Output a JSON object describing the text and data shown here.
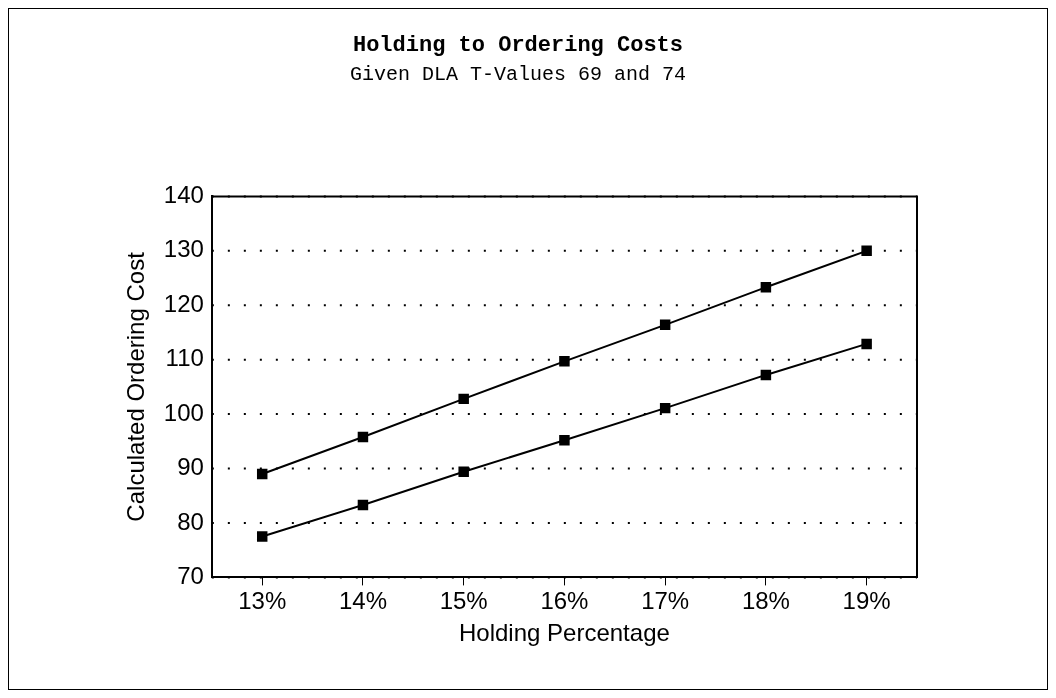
{
  "chart_data": {
    "type": "line",
    "title": "Holding to Ordering Costs",
    "subtitle": "Given DLA T-Values 69 and 74",
    "xlabel": "Holding Percentage",
    "ylabel": "Calculated Ordering Cost",
    "categories": [
      "13%",
      "14%",
      "15%",
      "16%",
      "17%",
      "18%",
      "19%"
    ],
    "series": [
      {
        "color": "#000000",
        "values": [
          89.0,
          95.8,
          102.8,
          109.7,
          116.4,
          123.3,
          130.0
        ]
      },
      {
        "color": "#000000",
        "values": [
          77.5,
          83.3,
          89.4,
          95.2,
          101.1,
          107.2,
          112.9
        ]
      }
    ],
    "ylim": [
      70,
      140
    ],
    "yticks": [
      70,
      80,
      90,
      100,
      110,
      120,
      130,
      140
    ],
    "grid": "y",
    "legend": false,
    "marker": "square",
    "line_style": "solid"
  }
}
